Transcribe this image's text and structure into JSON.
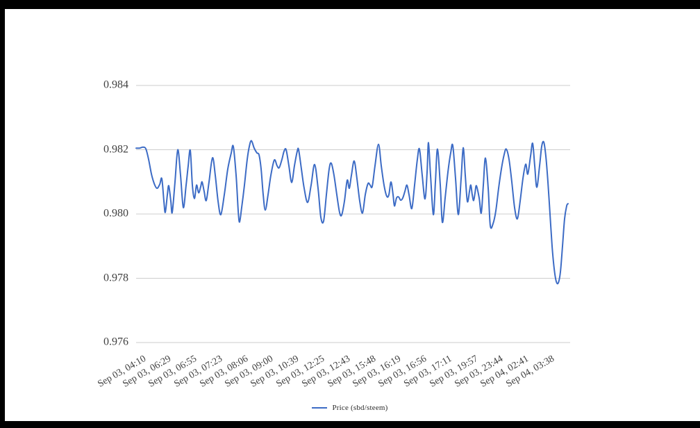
{
  "page": {
    "background": "#ffffff",
    "frame_color": "#000000"
  },
  "legend": {
    "label": "Price (sbd/steem)"
  },
  "chart_data": {
    "type": "line",
    "title": "",
    "xlabel": "",
    "ylabel": "",
    "ylim": [
      0.976,
      0.984
    ],
    "grid": true,
    "grid_color": "#cccccc",
    "text_color": "#414141",
    "legend_position": "bottom",
    "y_tick_labels": [
      "0.984",
      "0.982",
      "0.980",
      "0.978",
      "0.976"
    ],
    "y_tick_values": [
      0.984,
      0.982,
      0.98,
      0.978,
      0.976
    ],
    "x_tick_labels": [
      "Sep 03, 04:10",
      "Sep 03, 06:29",
      "Sep 03, 06:55",
      "Sep 03, 07:23",
      "Sep 03, 08:06",
      "Sep 03, 09:00",
      "Sep 03, 10:39",
      "Sep 03, 12:25",
      "Sep 03, 12:43",
      "Sep 03, 15:48",
      "Sep 03, 16:19",
      "Sep 03, 16:56",
      "Sep 03, 17:11",
      "Sep 03, 19:57",
      "Sep 03, 23:44",
      "Sep 04, 02:41",
      "Sep 04, 03:38"
    ],
    "x_label_rotation_deg": -30,
    "series": [
      {
        "name": "Price (sbd/steem)",
        "color": "#3c6bc5",
        "points": [
          [
            0.0,
            0.98205
          ],
          [
            0.008,
            0.98205
          ],
          [
            0.016,
            0.98208
          ],
          [
            0.0224,
            0.98203
          ],
          [
            0.0288,
            0.9817
          ],
          [
            0.0352,
            0.98125
          ],
          [
            0.0416,
            0.98095
          ],
          [
            0.048,
            0.9808
          ],
          [
            0.0544,
            0.98092
          ],
          [
            0.0592,
            0.9811
          ],
          [
            0.064,
            0.9804
          ],
          [
            0.0672,
            0.98005
          ],
          [
            0.072,
            0.9806
          ],
          [
            0.0752,
            0.98088
          ],
          [
            0.08,
            0.9804
          ],
          [
            0.0832,
            0.98005
          ],
          [
            0.0896,
            0.981
          ],
          [
            0.096,
            0.982
          ],
          [
            0.1024,
            0.9812
          ],
          [
            0.1088,
            0.9802
          ],
          [
            0.1152,
            0.9809
          ],
          [
            0.12,
            0.9815
          ],
          [
            0.1248,
            0.98198
          ],
          [
            0.1296,
            0.9809
          ],
          [
            0.1344,
            0.98048
          ],
          [
            0.1392,
            0.9809
          ],
          [
            0.144,
            0.98066
          ],
          [
            0.1488,
            0.98085
          ],
          [
            0.152,
            0.981
          ],
          [
            0.1568,
            0.9807
          ],
          [
            0.1616,
            0.98042
          ],
          [
            0.168,
            0.981
          ],
          [
            0.176,
            0.98175
          ],
          [
            0.1824,
            0.9812
          ],
          [
            0.1888,
            0.9804
          ],
          [
            0.1952,
            0.97998
          ],
          [
            0.2032,
            0.9806
          ],
          [
            0.2112,
            0.9814
          ],
          [
            0.2192,
            0.9819
          ],
          [
            0.224,
            0.9821
          ],
          [
            0.2304,
            0.9812
          ],
          [
            0.2352,
            0.9801
          ],
          [
            0.2384,
            0.97975
          ],
          [
            0.2432,
            0.9802
          ],
          [
            0.2496,
            0.9809
          ],
          [
            0.256,
            0.9817
          ],
          [
            0.2608,
            0.9821
          ],
          [
            0.2656,
            0.98228
          ],
          [
            0.272,
            0.98205
          ],
          [
            0.2784,
            0.9819
          ],
          [
            0.2832,
            0.98184
          ],
          [
            0.288,
            0.9814
          ],
          [
            0.2928,
            0.9806
          ],
          [
            0.2976,
            0.98012
          ],
          [
            0.304,
            0.9806
          ],
          [
            0.3104,
            0.9812
          ],
          [
            0.3184,
            0.98168
          ],
          [
            0.3248,
            0.9815
          ],
          [
            0.3296,
            0.98144
          ],
          [
            0.336,
            0.9817
          ],
          [
            0.3408,
            0.98195
          ],
          [
            0.3456,
            0.982
          ],
          [
            0.352,
            0.9815
          ],
          [
            0.3584,
            0.98098
          ],
          [
            0.3648,
            0.9815
          ],
          [
            0.3712,
            0.98195
          ],
          [
            0.3744,
            0.982
          ],
          [
            0.3808,
            0.9814
          ],
          [
            0.3872,
            0.9808
          ],
          [
            0.3952,
            0.98036
          ],
          [
            0.4032,
            0.9809
          ],
          [
            0.4112,
            0.98154
          ],
          [
            0.4192,
            0.9808
          ],
          [
            0.4256,
            0.9799
          ],
          [
            0.432,
            0.97978
          ],
          [
            0.4384,
            0.9806
          ],
          [
            0.4448,
            0.9814
          ],
          [
            0.4496,
            0.98158
          ],
          [
            0.456,
            0.9812
          ],
          [
            0.4624,
            0.9806
          ],
          [
            0.4688,
            0.98005
          ],
          [
            0.4736,
            0.97997
          ],
          [
            0.48,
            0.9804
          ],
          [
            0.4864,
            0.98105
          ],
          [
            0.4912,
            0.9808
          ],
          [
            0.496,
            0.9812
          ],
          [
            0.5024,
            0.98165
          ],
          [
            0.5088,
            0.9811
          ],
          [
            0.5152,
            0.9804
          ],
          [
            0.5216,
            0.98003
          ],
          [
            0.528,
            0.9806
          ],
          [
            0.5344,
            0.98095
          ],
          [
            0.5392,
            0.9809
          ],
          [
            0.544,
            0.98086
          ],
          [
            0.5504,
            0.9815
          ],
          [
            0.5584,
            0.98217
          ],
          [
            0.5648,
            0.9815
          ],
          [
            0.5712,
            0.9809
          ],
          [
            0.5776,
            0.98055
          ],
          [
            0.5824,
            0.9806
          ],
          [
            0.5872,
            0.981
          ],
          [
            0.592,
            0.9806
          ],
          [
            0.5952,
            0.98025
          ],
          [
            0.6,
            0.9805
          ],
          [
            0.6048,
            0.98053
          ],
          [
            0.6096,
            0.98043
          ],
          [
            0.6144,
            0.9805
          ],
          [
            0.6192,
            0.9807
          ],
          [
            0.624,
            0.9809
          ],
          [
            0.6288,
            0.9806
          ],
          [
            0.6352,
            0.98017
          ],
          [
            0.6416,
            0.9809
          ],
          [
            0.648,
            0.9817
          ],
          [
            0.6528,
            0.98202
          ],
          [
            0.6592,
            0.9812
          ],
          [
            0.6656,
            0.98047
          ],
          [
            0.6704,
            0.9813
          ],
          [
            0.6736,
            0.98222
          ],
          [
            0.6784,
            0.9812
          ],
          [
            0.6848,
            0.97998
          ],
          [
            0.6896,
            0.981
          ],
          [
            0.6944,
            0.98202
          ],
          [
            0.7008,
            0.9809
          ],
          [
            0.7056,
            0.97974
          ],
          [
            0.712,
            0.9805
          ],
          [
            0.7184,
            0.9813
          ],
          [
            0.7248,
            0.9819
          ],
          [
            0.7296,
            0.98213
          ],
          [
            0.736,
            0.9811
          ],
          [
            0.7424,
            0.97998
          ],
          [
            0.7488,
            0.9811
          ],
          [
            0.7536,
            0.98206
          ],
          [
            0.7584,
            0.9812
          ],
          [
            0.7632,
            0.98039
          ],
          [
            0.768,
            0.9807
          ],
          [
            0.7712,
            0.9809
          ],
          [
            0.7744,
            0.9806
          ],
          [
            0.7776,
            0.98042
          ],
          [
            0.7808,
            0.98065
          ],
          [
            0.784,
            0.98088
          ],
          [
            0.7904,
            0.9805
          ],
          [
            0.7952,
            0.98003
          ],
          [
            0.8,
            0.9809
          ],
          [
            0.8048,
            0.98174
          ],
          [
            0.8112,
            0.9808
          ],
          [
            0.816,
            0.97964
          ],
          [
            0.8224,
            0.9797
          ],
          [
            0.8288,
            0.9801
          ],
          [
            0.8352,
            0.9808
          ],
          [
            0.8416,
            0.9814
          ],
          [
            0.848,
            0.98185
          ],
          [
            0.8528,
            0.98202
          ],
          [
            0.8592,
            0.9817
          ],
          [
            0.8656,
            0.981
          ],
          [
            0.872,
            0.9802
          ],
          [
            0.8784,
            0.97985
          ],
          [
            0.8848,
            0.9804
          ],
          [
            0.8912,
            0.9811
          ],
          [
            0.8976,
            0.98155
          ],
          [
            0.9024,
            0.98124
          ],
          [
            0.9088,
            0.9818
          ],
          [
            0.9136,
            0.9822
          ],
          [
            0.9184,
            0.9815
          ],
          [
            0.9232,
            0.98083
          ],
          [
            0.9296,
            0.9815
          ],
          [
            0.9344,
            0.9821
          ],
          [
            0.9392,
            0.98224
          ],
          [
            0.944,
            0.9818
          ],
          [
            0.9488,
            0.981
          ],
          [
            0.9536,
            0.98
          ],
          [
            0.9584,
            0.979
          ],
          [
            0.9632,
            0.9783
          ],
          [
            0.968,
            0.9779
          ],
          [
            0.9728,
            0.97786
          ],
          [
            0.9776,
            0.9782
          ],
          [
            0.9824,
            0.979
          ],
          [
            0.9872,
            0.97985
          ],
          [
            0.992,
            0.98025
          ],
          [
            0.9952,
            0.98032
          ]
        ]
      }
    ]
  }
}
